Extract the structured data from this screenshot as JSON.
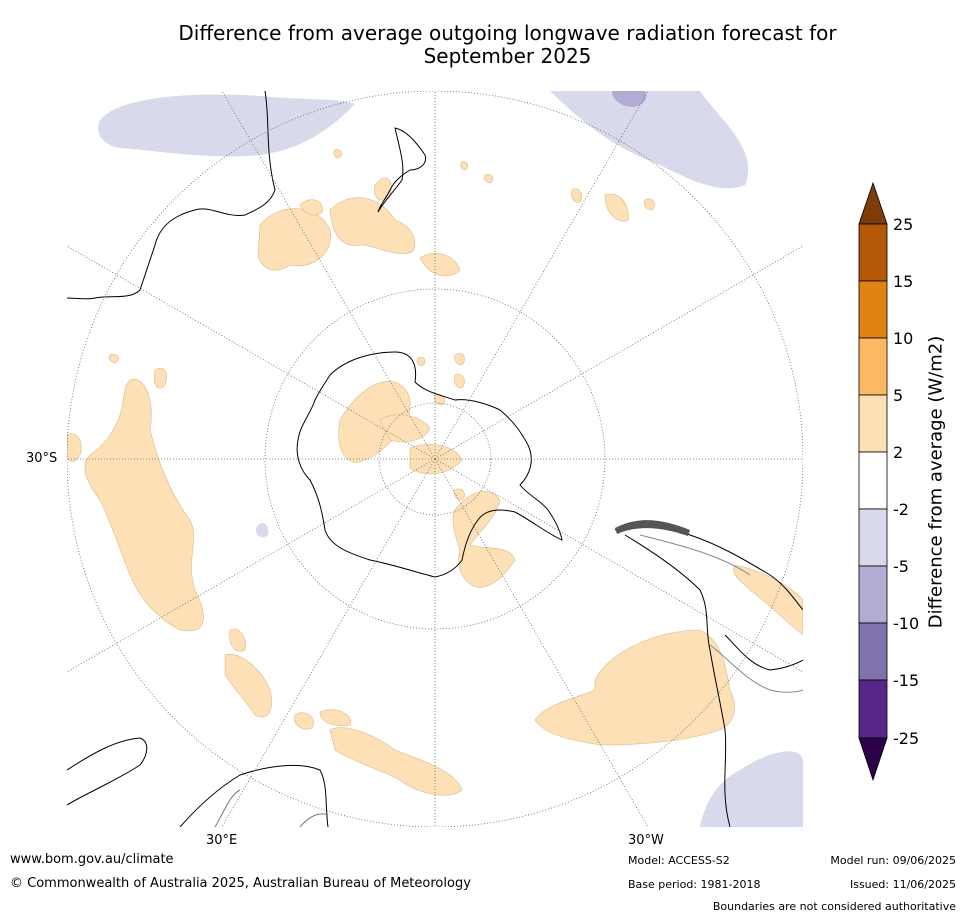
{
  "title_line1": "Difference from average outgoing longwave radiation forecast for",
  "title_line2": "September 2025",
  "map_labels": {
    "lat_30s": "30°S",
    "lon_30e": "30°E",
    "lon_30w": "30°W"
  },
  "colorbar": {
    "title": "Difference from average (W/m2)",
    "ticks": [
      "25",
      "15",
      "10",
      "5",
      "2",
      "-2",
      "-5",
      "-10",
      "-15",
      "-25"
    ],
    "colors": {
      "gt25": "#7f3b08",
      "15_25": "#b35806",
      "10_15": "#e08214",
      "5_10": "#fdb863",
      "2_5": "#fee0b6",
      "-2_2": "#ffffff",
      "-5_-2": "#d8daeb",
      "-10_-5": "#b2abd2",
      "-15_-10": "#8073ac",
      "-25_-15": "#542788",
      "lt-25": "#2d004b"
    }
  },
  "footer": {
    "website": "www.bom.gov.au/climate",
    "copyright": "© Commonwealth of Australia 2025, Australian Bureau of Meteorology",
    "model": "Model: ACCESS-S2",
    "base_period": "Base period: 1981-2018",
    "model_run": "Model run: 09/06/2025",
    "issued": "Issued: 11/06/2025",
    "disclaimer": "Boundaries are not considered authoritative"
  }
}
